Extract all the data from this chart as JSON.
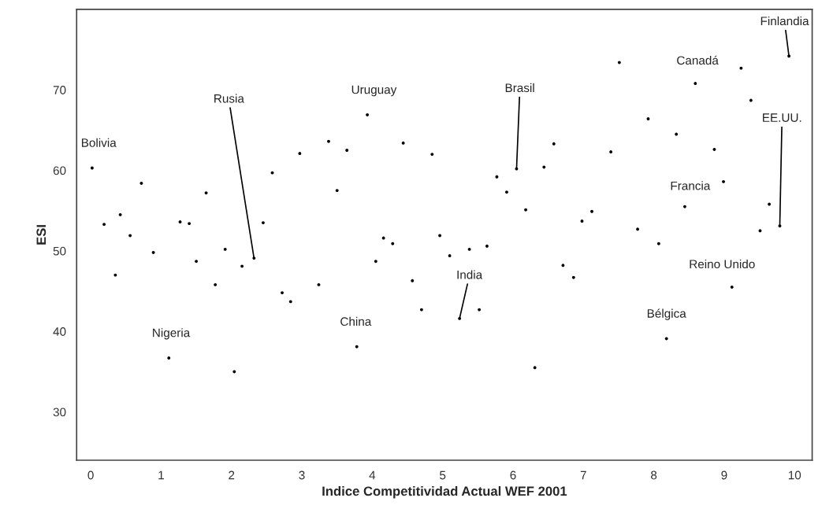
{
  "chart_data": {
    "type": "scatter",
    "xlabel": "Indice Competitividad Actual WEF 2001",
    "ylabel": "ESI",
    "x": [
      0.02,
      0.19,
      0.35,
      0.42,
      0.56,
      0.72,
      0.89,
      1.11,
      1.27,
      1.4,
      1.5,
      1.64,
      1.77,
      1.91,
      2.04,
      2.15,
      2.32,
      2.45,
      2.58,
      2.72,
      2.84,
      2.97,
      3.24,
      3.38,
      3.5,
      3.64,
      3.78,
      3.93,
      4.05,
      4.16,
      4.29,
      4.44,
      4.57,
      4.7,
      4.85,
      4.96,
      5.1,
      5.24,
      5.38,
      5.52,
      5.63,
      5.77,
      5.91,
      6.05,
      6.18,
      6.31,
      6.44,
      6.58,
      6.71,
      6.86,
      6.98,
      7.12,
      7.39,
      7.51,
      7.77,
      7.92,
      8.07,
      8.18,
      8.32,
      8.44,
      8.59,
      8.86,
      8.99,
      9.11,
      9.24,
      9.38,
      9.51,
      9.64,
      9.79,
      9.92
    ],
    "series": [
      {
        "color": "#000000",
        "values": [
          60.3,
          53.3,
          47.0,
          54.5,
          51.9,
          58.4,
          49.8,
          36.7,
          53.6,
          53.4,
          48.7,
          57.2,
          45.8,
          50.2,
          35.0,
          48.1,
          49.1,
          53.5,
          59.7,
          44.8,
          43.7,
          62.1,
          45.8,
          63.6,
          57.5,
          62.5,
          38.1,
          66.9,
          48.7,
          51.6,
          50.9,
          63.4,
          46.3,
          42.7,
          62.0,
          51.9,
          49.4,
          41.6,
          50.2,
          42.7,
          50.6,
          59.2,
          57.3,
          60.2,
          55.1,
          35.5,
          60.4,
          63.3,
          48.2,
          46.7,
          53.7,
          54.9,
          62.3,
          73.4,
          52.7,
          66.4,
          50.9,
          39.1,
          64.5,
          55.5,
          70.8,
          62.6,
          58.6,
          45.5,
          72.7,
          68.7,
          52.5,
          55.8,
          53.1,
          74.2
        ]
      }
    ],
    "annotations": [
      {
        "text": "Bolivia",
        "x": 0.02,
        "y": 60.3
      },
      {
        "text": "Nigeria",
        "x": 1.11,
        "y": 36.7
      },
      {
        "text": "Rusia",
        "x": 2.32,
        "y": 49.1
      },
      {
        "text": "Uruguay",
        "x": 3.93,
        "y": 66.9
      },
      {
        "text": "China",
        "x": 3.78,
        "y": 38.1
      },
      {
        "text": "India",
        "x": 5.24,
        "y": 41.6
      },
      {
        "text": "Brasil",
        "x": 6.05,
        "y": 60.2
      },
      {
        "text": "Canadá",
        "x": 8.59,
        "y": 70.8
      },
      {
        "text": "Finlandia",
        "x": 9.92,
        "y": 74.2
      },
      {
        "text": "EE.UU.",
        "x": 9.79,
        "y": 53.1
      },
      {
        "text": "Francia",
        "x": 8.44,
        "y": 55.5
      },
      {
        "text": "Reino Unido",
        "x": 9.11,
        "y": 45.5
      },
      {
        "text": "Bélgica",
        "x": 8.18,
        "y": 39.1
      }
    ],
    "xlim": [
      -0.2,
      10.25
    ],
    "ylim": [
      24,
      80
    ],
    "xticks": [
      0,
      1,
      2,
      3,
      4,
      5,
      6,
      7,
      8,
      9,
      10
    ],
    "yticks": [
      30,
      40,
      50,
      60,
      70
    ],
    "marker": "circle",
    "grid": false,
    "legend": false
  }
}
